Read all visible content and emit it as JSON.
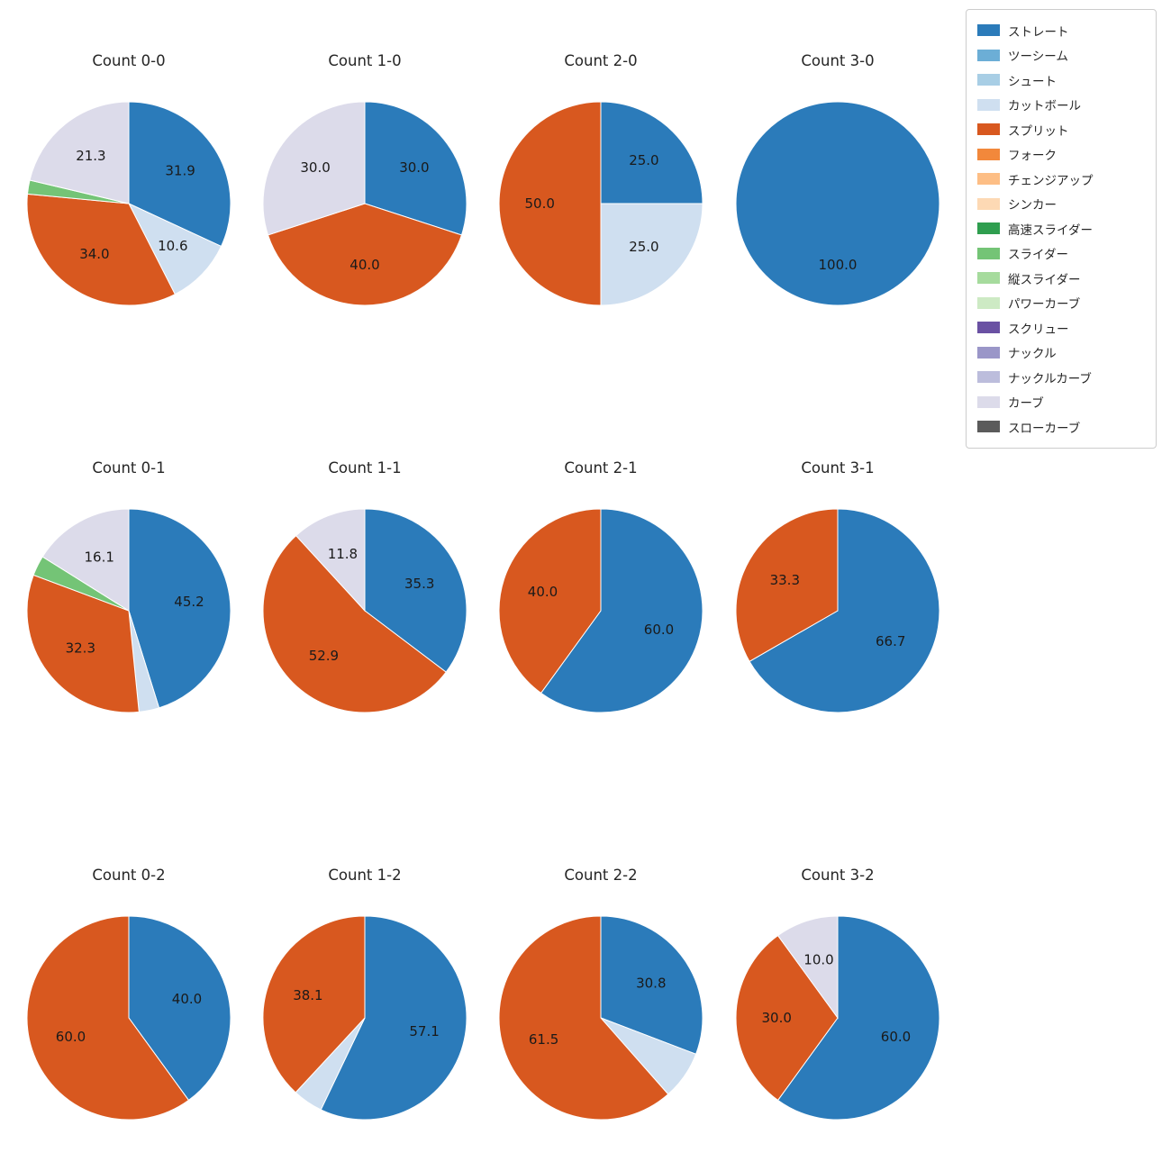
{
  "colors": {
    "ストレート": "#2b7bba",
    "ツーシーム": "#6caed6",
    "シュート": "#a8cee5",
    "カットボール": "#cfdff0",
    "スプリット": "#d8581f",
    "フォーク": "#f2883b",
    "チェンジアップ": "#fdbe85",
    "シンカー": "#fdd9b4",
    "高速スライダー": "#2f9e4f",
    "スライダー": "#74c476",
    "縦スライダー": "#a6db9d",
    "パワーカーブ": "#cdeac4",
    "スクリュー": "#6a51a3",
    "ナックル": "#9a96c8",
    "ナックルカーブ": "#bcbddc",
    "カーブ": "#dcdbea",
    "スローカーブ": "#5b5b5b"
  },
  "legend": {
    "items": [
      "ストレート",
      "ツーシーム",
      "シュート",
      "カットボール",
      "スプリット",
      "フォーク",
      "チェンジアップ",
      "シンカー",
      "高速スライダー",
      "スライダー",
      "縦スライダー",
      "パワーカーブ",
      "スクリュー",
      "ナックル",
      "ナックルカーブ",
      "カーブ",
      "スローカーブ"
    ]
  },
  "chart_data": [
    {
      "type": "pie",
      "title": "Count 0-0",
      "start": "top",
      "direction": "clockwise",
      "slices": [
        {
          "name": "ストレート",
          "value": 31.9,
          "label": "31.9"
        },
        {
          "name": "カットボール",
          "value": 10.6,
          "label": "10.6"
        },
        {
          "name": "スプリット",
          "value": 34.0,
          "label": "34.0"
        },
        {
          "name": "スライダー",
          "value": 2.2,
          "label": ""
        },
        {
          "name": "カーブ",
          "value": 21.3,
          "label": "21.3"
        }
      ]
    },
    {
      "type": "pie",
      "title": "Count 1-0",
      "start": "top",
      "direction": "clockwise",
      "slices": [
        {
          "name": "ストレート",
          "value": 30.0,
          "label": "30.0"
        },
        {
          "name": "スプリット",
          "value": 40.0,
          "label": "40.0"
        },
        {
          "name": "カーブ",
          "value": 30.0,
          "label": "30.0"
        }
      ]
    },
    {
      "type": "pie",
      "title": "Count 2-0",
      "start": "top",
      "direction": "clockwise",
      "slices": [
        {
          "name": "ストレート",
          "value": 25.0,
          "label": "25.0"
        },
        {
          "name": "カットボール",
          "value": 25.0,
          "label": "25.0"
        },
        {
          "name": "スプリット",
          "value": 50.0,
          "label": "50.0"
        }
      ]
    },
    {
      "type": "pie",
      "title": "Count 3-0",
      "start": "top",
      "direction": "clockwise",
      "slices": [
        {
          "name": "ストレート",
          "value": 100.0,
          "label": "100.0"
        }
      ]
    },
    {
      "type": "pie",
      "title": "Count 0-1",
      "start": "top",
      "direction": "clockwise",
      "slices": [
        {
          "name": "ストレート",
          "value": 45.2,
          "label": "45.2"
        },
        {
          "name": "カットボール",
          "value": 3.2,
          "label": ""
        },
        {
          "name": "スプリット",
          "value": 32.3,
          "label": "32.3"
        },
        {
          "name": "スライダー",
          "value": 3.2,
          "label": ""
        },
        {
          "name": "カーブ",
          "value": 16.1,
          "label": "16.1"
        }
      ]
    },
    {
      "type": "pie",
      "title": "Count 1-1",
      "start": "top",
      "direction": "clockwise",
      "slices": [
        {
          "name": "ストレート",
          "value": 35.3,
          "label": "35.3"
        },
        {
          "name": "スプリット",
          "value": 52.9,
          "label": "52.9"
        },
        {
          "name": "カーブ",
          "value": 11.8,
          "label": "11.8"
        }
      ]
    },
    {
      "type": "pie",
      "title": "Count 2-1",
      "start": "top",
      "direction": "clockwise",
      "slices": [
        {
          "name": "ストレート",
          "value": 60.0,
          "label": "60.0"
        },
        {
          "name": "スプリット",
          "value": 40.0,
          "label": "40.0"
        }
      ]
    },
    {
      "type": "pie",
      "title": "Count 3-1",
      "start": "top",
      "direction": "clockwise",
      "slices": [
        {
          "name": "ストレート",
          "value": 66.7,
          "label": "66.7"
        },
        {
          "name": "スプリット",
          "value": 33.3,
          "label": "33.3"
        }
      ]
    },
    {
      "type": "pie",
      "title": "Count 0-2",
      "start": "top",
      "direction": "clockwise",
      "slices": [
        {
          "name": "ストレート",
          "value": 40.0,
          "label": "40.0"
        },
        {
          "name": "スプリット",
          "value": 60.0,
          "label": "60.0"
        }
      ]
    },
    {
      "type": "pie",
      "title": "Count 1-2",
      "start": "top",
      "direction": "clockwise",
      "slices": [
        {
          "name": "ストレート",
          "value": 57.1,
          "label": "57.1"
        },
        {
          "name": "カットボール",
          "value": 4.8,
          "label": ""
        },
        {
          "name": "スプリット",
          "value": 38.1,
          "label": "38.1"
        }
      ]
    },
    {
      "type": "pie",
      "title": "Count 2-2",
      "start": "top",
      "direction": "clockwise",
      "slices": [
        {
          "name": "ストレート",
          "value": 30.8,
          "label": "30.8"
        },
        {
          "name": "カットボール",
          "value": 7.7,
          "label": ""
        },
        {
          "name": "スプリット",
          "value": 61.5,
          "label": "61.5"
        }
      ]
    },
    {
      "type": "pie",
      "title": "Count 3-2",
      "start": "top",
      "direction": "clockwise",
      "slices": [
        {
          "name": "ストレート",
          "value": 60.0,
          "label": "60.0"
        },
        {
          "name": "スプリット",
          "value": 30.0,
          "label": "30.0"
        },
        {
          "name": "カーブ",
          "value": 10.0,
          "label": "10.0"
        }
      ]
    }
  ]
}
